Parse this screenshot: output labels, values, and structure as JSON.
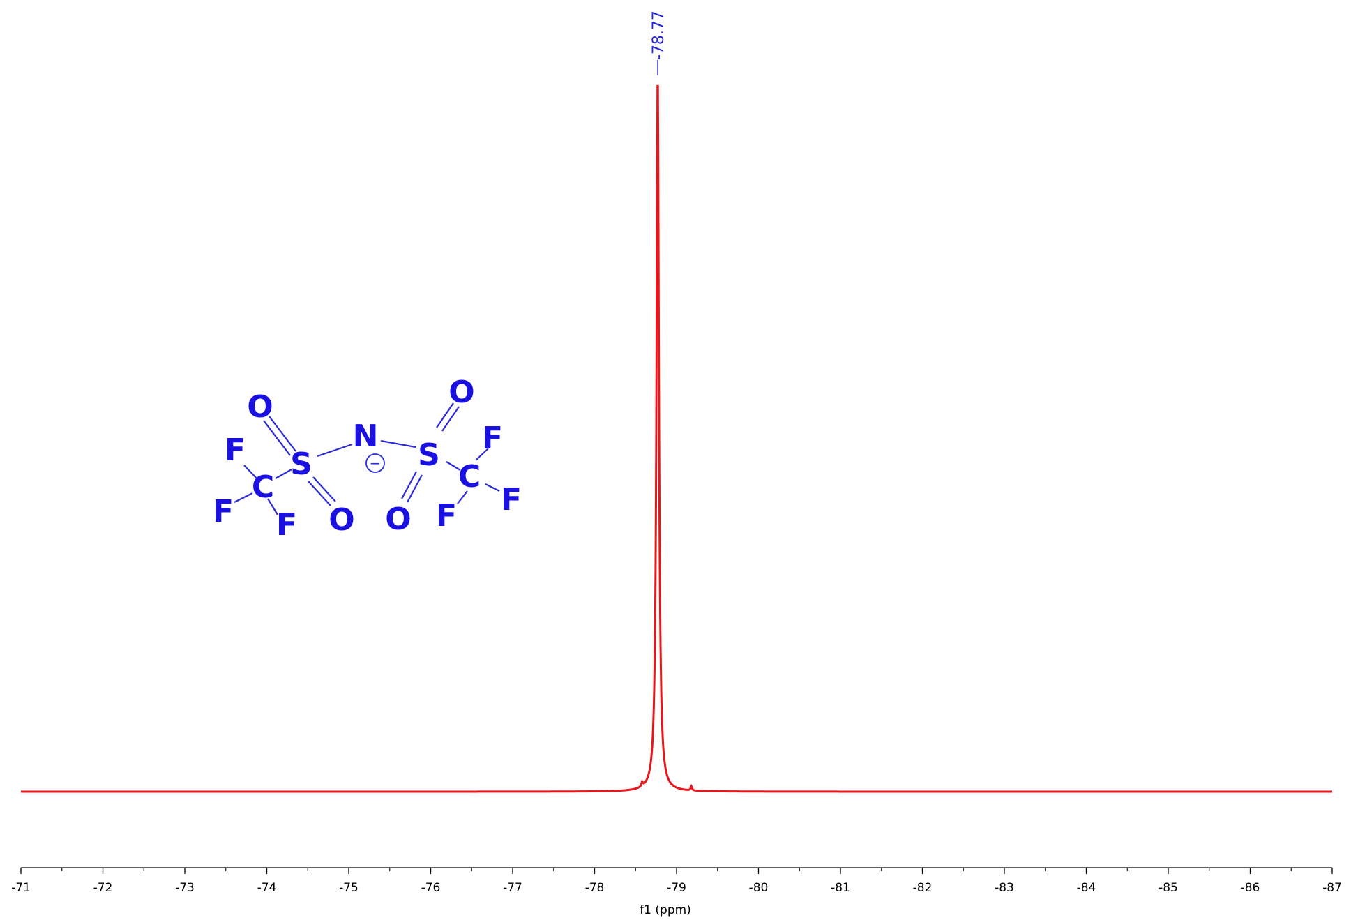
{
  "chart_data": {
    "type": "line",
    "title": "",
    "xlabel": "f1 (ppm)",
    "ylabel": "",
    "xlim": [
      -71,
      -87
    ],
    "x_reversed": true,
    "xticks": [
      -71,
      -72,
      -73,
      -74,
      -75,
      -76,
      -77,
      -78,
      -79,
      -80,
      -81,
      -82,
      -83,
      -84,
      -85,
      -86,
      -87
    ],
    "xtick_labels": [
      "-71",
      "-72",
      "-73",
      "-74",
      "-75",
      "-76",
      "-77",
      "-78",
      "-79",
      "-80",
      "-81",
      "-82",
      "-83",
      "-84",
      "-85",
      "-86",
      "-87"
    ],
    "grid": false,
    "legend": "none",
    "series_color": "#e8161b",
    "peaks": [
      {
        "shift": -78.77,
        "intensity": 1.0,
        "width": 0.035,
        "label": "-78.77"
      },
      {
        "shift": -78.58,
        "intensity": 0.006,
        "width": 0.02
      },
      {
        "shift": -79.18,
        "intensity": 0.006,
        "width": 0.02
      }
    ]
  },
  "structure": {
    "atoms": [
      {
        "id": "O1",
        "symbol": "O"
      },
      {
        "id": "F1",
        "symbol": "F"
      },
      {
        "id": "S1",
        "symbol": "S"
      },
      {
        "id": "N",
        "symbol": "N"
      },
      {
        "id": "C1",
        "symbol": "C"
      },
      {
        "id": "F2",
        "symbol": "F"
      },
      {
        "id": "F3",
        "symbol": "F"
      },
      {
        "id": "O2",
        "symbol": "O"
      },
      {
        "id": "O3",
        "symbol": "O"
      },
      {
        "id": "S2",
        "symbol": "S"
      },
      {
        "id": "F4",
        "symbol": "F"
      },
      {
        "id": "C2",
        "symbol": "C"
      },
      {
        "id": "F5",
        "symbol": "F"
      },
      {
        "id": "O4",
        "symbol": "O"
      },
      {
        "id": "F6",
        "symbol": "F"
      }
    ],
    "charge_symbol": "−",
    "color": "#1a10e0"
  }
}
